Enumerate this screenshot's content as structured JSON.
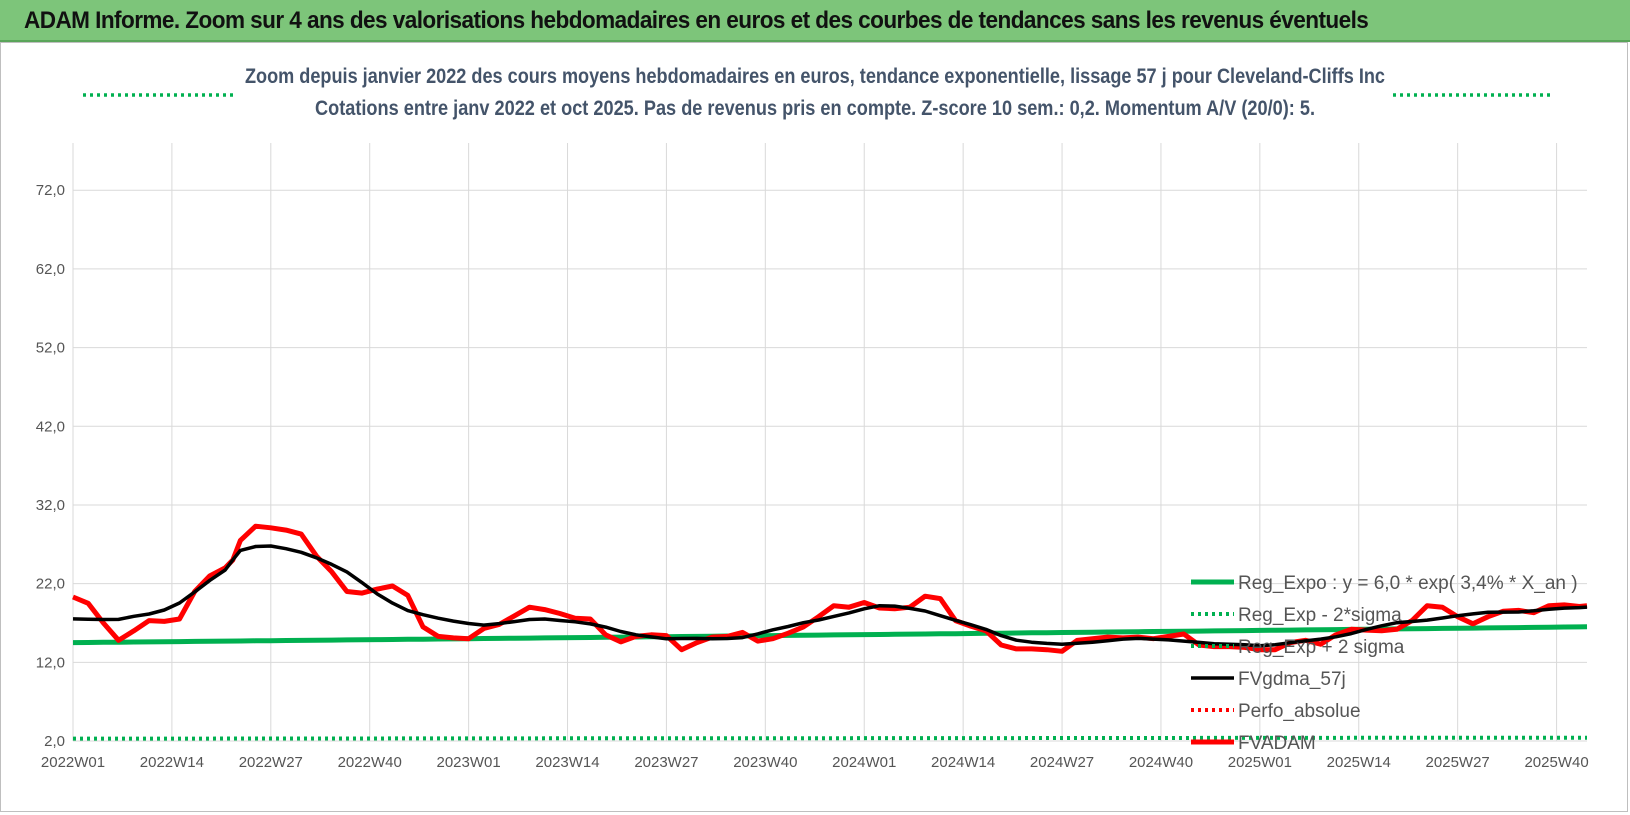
{
  "header": {
    "title": "ADAM Informe. Zoom sur 4 ans des valorisations hebdomadaires en euros et des courbes de tendances sans les revenus éventuels"
  },
  "colors": {
    "header_bg": "#7dc57a",
    "trend_green": "#00b050",
    "price_red": "#ff0000",
    "smooth_black": "#000000",
    "grid": "#d9d9d9",
    "subtitle": "#44546a"
  },
  "chart_data": {
    "type": "line",
    "title_line1": "Zoom depuis janvier 2022 des cours moyens hebdomadaires en euros, tendance exponentielle, lissage 57 j pour Cleveland-Cliffs Inc",
    "title_line2": "Cotations entre janv 2022 et oct 2025. Pas de revenus pris en compte. Z-score 10 sem.: 0,2. Momentum A/V (20/0): 5.",
    "ylim": [
      2,
      78
    ],
    "y_ticks": [
      "2,0",
      "12,0",
      "22,0",
      "32,0",
      "42,0",
      "52,0",
      "62,0",
      "72,0"
    ],
    "y_tick_values": [
      2,
      12,
      22,
      32,
      42,
      52,
      62,
      72
    ],
    "x_tick_labels": [
      "2022W01",
      "2022W14",
      "2022W27",
      "2022W40",
      "2023W01",
      "2023W14",
      "2023W27",
      "2023W40",
      "2024W01",
      "2024W14",
      "2024W27",
      "2024W40",
      "2025W01",
      "2025W14",
      "2025W27",
      "2025W40"
    ],
    "x_tick_indices": [
      0,
      13,
      26,
      39,
      52,
      65,
      78,
      91,
      104,
      117,
      130,
      143,
      156,
      169,
      182,
      195
    ],
    "week_count": 200,
    "grid": true,
    "legend_position": "bottom-right",
    "legend": [
      {
        "key": "reg_expo",
        "label": "Reg_Expo : y = 6,0 * exp( 3,4% *  X_an )",
        "style": "solid",
        "color": "#00b050"
      },
      {
        "key": "reg_minus",
        "label": "Reg_Exp - 2*sigma",
        "style": "dotted",
        "color": "#00b050"
      },
      {
        "key": "reg_plus",
        "label": "Reg_Exp + 2 sigma",
        "style": "dotted",
        "color": "#00b050"
      },
      {
        "key": "fvgdma",
        "label": "FVgdma_57j",
        "style": "solid",
        "color": "#000000"
      },
      {
        "key": "perfo",
        "label": "Perfo_absolue",
        "style": "dotted",
        "color": "#ff0000"
      },
      {
        "key": "fvadam",
        "label": "FVADAM",
        "style": "solid",
        "color": "#ff0000"
      }
    ],
    "series": [
      {
        "name": "FVADAM",
        "points": [
          [
            0,
            20.3
          ],
          [
            2,
            19.5
          ],
          [
            4,
            17
          ],
          [
            6,
            14.8
          ],
          [
            8,
            16
          ],
          [
            10,
            17.3
          ],
          [
            12,
            17.2
          ],
          [
            14,
            17.5
          ],
          [
            16,
            21
          ],
          [
            18,
            23
          ],
          [
            20,
            24
          ],
          [
            21,
            25
          ],
          [
            22,
            27.5
          ],
          [
            24,
            29.3
          ],
          [
            26,
            29.1
          ],
          [
            28,
            28.8
          ],
          [
            30,
            28.3
          ],
          [
            32,
            25.5
          ],
          [
            34,
            23.5
          ],
          [
            36,
            21
          ],
          [
            38,
            20.8
          ],
          [
            40,
            21.3
          ],
          [
            42,
            21.7
          ],
          [
            44,
            20.5
          ],
          [
            46,
            16.5
          ],
          [
            48,
            15.3
          ],
          [
            50,
            15.1
          ],
          [
            52,
            15
          ],
          [
            54,
            16.3
          ],
          [
            56,
            16.8
          ],
          [
            58,
            17.9
          ],
          [
            60,
            19
          ],
          [
            62,
            18.7
          ],
          [
            64,
            18.2
          ],
          [
            66,
            17.6
          ],
          [
            68,
            17.5
          ],
          [
            70,
            15.5
          ],
          [
            72,
            14.6
          ],
          [
            74,
            15.3
          ],
          [
            76,
            15.5
          ],
          [
            78,
            15.4
          ],
          [
            80,
            13.6
          ],
          [
            82,
            14.5
          ],
          [
            84,
            15.2
          ],
          [
            86,
            15.3
          ],
          [
            88,
            15.8
          ],
          [
            90,
            14.7
          ],
          [
            92,
            15
          ],
          [
            94,
            15.7
          ],
          [
            96,
            16.5
          ],
          [
            98,
            17.8
          ],
          [
            100,
            19.2
          ],
          [
            102,
            19
          ],
          [
            104,
            19.6
          ],
          [
            106,
            18.9
          ],
          [
            108,
            18.8
          ],
          [
            110,
            19
          ],
          [
            112,
            20.4
          ],
          [
            114,
            20.1
          ],
          [
            116,
            17.3
          ],
          [
            118,
            16.6
          ],
          [
            120,
            16
          ],
          [
            122,
            14.2
          ],
          [
            124,
            13.7
          ],
          [
            126,
            13.7
          ],
          [
            128,
            13.6
          ],
          [
            130,
            13.4
          ],
          [
            132,
            14.8
          ],
          [
            134,
            15
          ],
          [
            136,
            15.2
          ],
          [
            138,
            15.1
          ],
          [
            140,
            15.2
          ],
          [
            142,
            15
          ],
          [
            144,
            15.3
          ],
          [
            146,
            15.6
          ],
          [
            148,
            14.2
          ],
          [
            150,
            14
          ],
          [
            152,
            14
          ],
          [
            154,
            13.9
          ],
          [
            156,
            13.6
          ],
          [
            158,
            13.6
          ],
          [
            160,
            14.5
          ],
          [
            162,
            14.8
          ],
          [
            164,
            14.3
          ],
          [
            166,
            15.5
          ],
          [
            168,
            16.2
          ],
          [
            170,
            16.1
          ],
          [
            172,
            16
          ],
          [
            174,
            16.2
          ],
          [
            176,
            17.3
          ],
          [
            178,
            19.2
          ],
          [
            180,
            19
          ],
          [
            182,
            17.8
          ],
          [
            184,
            16.9
          ],
          [
            186,
            17.8
          ],
          [
            188,
            18.5
          ],
          [
            190,
            18.6
          ],
          [
            192,
            18.3
          ],
          [
            194,
            19.2
          ],
          [
            196,
            19.3
          ],
          [
            198,
            19.1
          ],
          [
            199,
            19.2
          ]
        ],
        "color": "#ff0000"
      }
    ]
  }
}
